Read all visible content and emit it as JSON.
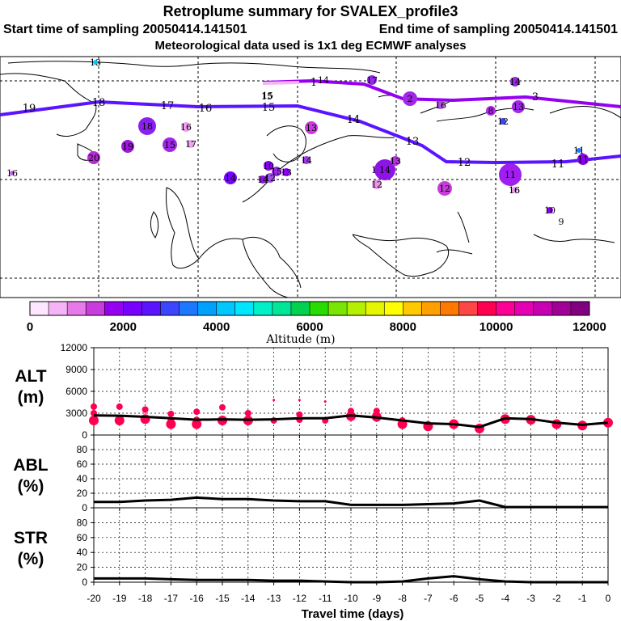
{
  "header": {
    "title": "Retroplume summary for SVALEX_profile3",
    "start": "Start time of sampling 20050414.141501",
    "end": "End time of sampling 20050414.141501",
    "met": "Meteorological data used is 1x1 deg ECMWF analyses"
  },
  "colorbar": {
    "colors": [
      "#ffe6ff",
      "#f5b4f5",
      "#e67ae6",
      "#c83cdc",
      "#9600f0",
      "#7800ff",
      "#5a14ff",
      "#3c46ff",
      "#1e78ff",
      "#00a0ff",
      "#00c8ff",
      "#00e6ff",
      "#00f0c8",
      "#00e696",
      "#00d250",
      "#28dc00",
      "#78e600",
      "#b4f000",
      "#e6f500",
      "#ffff00",
      "#ffc800",
      "#ffa000",
      "#ff7800",
      "#ff4646",
      "#ff0050",
      "#ff0096",
      "#e600b4",
      "#c800b4",
      "#a00096",
      "#800080"
    ],
    "ticks": [
      "0",
      "2000",
      "4000",
      "6000",
      "8000",
      "10000",
      "12000"
    ],
    "title": "Altitude (m)"
  },
  "map_labels": [
    {
      "t": "19"
    },
    {
      "t": "18"
    },
    {
      "t": "17"
    },
    {
      "t": "16"
    },
    {
      "t": "15"
    },
    {
      "t": "14"
    },
    {
      "t": "13"
    },
    {
      "t": "12"
    },
    {
      "t": "11"
    },
    {
      "t": "1"
    },
    {
      "t": "2"
    },
    {
      "t": "3"
    },
    {
      "t": "14"
    },
    {
      "t": "15"
    }
  ],
  "map_dots": [
    {
      "t": "13",
      "c": "#00c8ff"
    },
    {
      "t": "18",
      "c": "#8a1ff0"
    },
    {
      "t": "19",
      "c": "#9a1ad8"
    },
    {
      "t": "20",
      "c": "#b42ad8"
    },
    {
      "t": "16",
      "c": "#f0a0f0"
    },
    {
      "t": "15",
      "c": "#a028e6"
    },
    {
      "t": "17",
      "c": "#f0a0f0"
    },
    {
      "t": "16",
      "c": "#c864e6"
    },
    {
      "t": "10",
      "c": "#8c00f0"
    },
    {
      "t": "14",
      "c": "#7800ff"
    },
    {
      "t": "15",
      "c": "#9628e6"
    },
    {
      "t": "13",
      "c": "#8c00f0"
    },
    {
      "t": "12",
      "c": "#a050e6"
    },
    {
      "t": "14",
      "c": "#a03ce6"
    },
    {
      "t": "13",
      "c": "#c83cdc"
    },
    {
      "t": "15",
      "c": "#e680e6"
    },
    {
      "t": "14",
      "c": "#8c14e6"
    },
    {
      "t": "12",
      "c": "#e696e6"
    },
    {
      "t": "13",
      "c": "#b432dc"
    },
    {
      "t": "12",
      "c": "#c83cdc"
    },
    {
      "t": "11",
      "c": "#a01ef0"
    },
    {
      "t": "16",
      "c": "#f0a0f0"
    },
    {
      "t": "2",
      "c": "#a028e6"
    },
    {
      "t": "16",
      "c": "#b450e6"
    },
    {
      "t": "17",
      "c": "#9628e6"
    },
    {
      "t": "14",
      "c": "#9628e6"
    },
    {
      "t": "13",
      "c": "#a028e6"
    },
    {
      "t": "12",
      "c": "#3c46ff"
    },
    {
      "t": "8",
      "c": "#b428e6"
    },
    {
      "t": "11",
      "c": "#1e78ff"
    },
    {
      "t": "11",
      "c": "#8c00f0"
    },
    {
      "t": "10",
      "c": "#8c00f0"
    },
    {
      "t": "9",
      "c": "#ffffff"
    },
    {
      "t": "16",
      "c": "#ffffff"
    },
    {
      "t": "15",
      "c": "#ffffff"
    },
    {
      "t": "14",
      "c": "#8c14e6"
    }
  ],
  "panels": {
    "alt": {
      "label1": "ALT",
      "label2": "(m)",
      "ticks": [
        "12000",
        "9000",
        "6000",
        "3000",
        "0"
      ]
    },
    "abl": {
      "label1": "ABL",
      "label2": "(%)",
      "ticks": [
        "80",
        "60",
        "40",
        "20",
        "0"
      ]
    },
    "str": {
      "label1": "STR",
      "label2": "(%)",
      "ticks": [
        "80",
        "60",
        "40",
        "20",
        "0"
      ]
    }
  },
  "chart_data": {
    "type": "line",
    "title": "Retroplume summary for SVALEX_profile3",
    "xlabel": "Travel time (days)",
    "x": [
      -20,
      -19,
      -18,
      -17,
      -16,
      -15,
      -14,
      -13,
      -12,
      -11,
      -10,
      -9,
      -8,
      -7,
      -6,
      -5,
      -4,
      -3,
      -2,
      -1,
      0
    ],
    "xlim": [
      -20,
      0
    ],
    "xtick_labels": [
      "-20",
      "-19",
      "-18",
      "-17",
      "-16",
      "-15",
      "-14",
      "-13",
      "-12",
      "-11",
      "-10",
      "-9",
      "-8",
      "-7",
      "-6",
      "-5",
      "-4",
      "-3",
      "-2",
      "-1",
      "0"
    ],
    "series": [
      {
        "name": "ALT (m)",
        "ylim": [
          0,
          12000
        ],
        "values": [
          2700,
          2650,
          2500,
          2300,
          2100,
          2150,
          2100,
          2150,
          2300,
          2300,
          2700,
          2400,
          2000,
          1600,
          1500,
          1100,
          2300,
          2200,
          1700,
          1400,
          1700
        ]
      },
      {
        "name": "ABL (%)",
        "ylim": [
          0,
          100
        ],
        "values": [
          8,
          8,
          10,
          11,
          14,
          12,
          12,
          10,
          9,
          9,
          4,
          4,
          4,
          5,
          6,
          10,
          1,
          1,
          1,
          1,
          1
        ]
      },
      {
        "name": "STR (%)",
        "ylim": [
          0,
          100
        ],
        "values": [
          5,
          5,
          5,
          4,
          3,
          3,
          3,
          2,
          2,
          1,
          0,
          0,
          1,
          5,
          8,
          4,
          1,
          0,
          0,
          0,
          0
        ]
      }
    ],
    "alt_markers": [
      {
        "x": -20,
        "ys": [
          3900,
          3000,
          2000
        ]
      },
      {
        "x": -19,
        "ys": [
          3900,
          2000
        ]
      },
      {
        "x": -18,
        "ys": [
          3500,
          2200
        ]
      },
      {
        "x": -17,
        "ys": [
          2900,
          2000,
          1500
        ]
      },
      {
        "x": -16,
        "ys": [
          3200,
          2100,
          1500
        ]
      },
      {
        "x": -15,
        "ys": [
          3800,
          2000
        ]
      },
      {
        "x": -14,
        "ys": [
          3000,
          2000
        ]
      },
      {
        "x": -13,
        "ys": [
          2000,
          4800
        ]
      },
      {
        "x": -12,
        "ys": [
          2800,
          2100,
          4800
        ]
      },
      {
        "x": -11,
        "ys": [
          2000,
          4600
        ]
      },
      {
        "x": -10,
        "ys": [
          3300,
          2600
        ]
      },
      {
        "x": -9,
        "ys": [
          3300,
          2500
        ]
      },
      {
        "x": -8,
        "ys": [
          2000,
          1500
        ]
      },
      {
        "x": -7,
        "ys": [
          1500,
          1200
        ]
      },
      {
        "x": -6,
        "ys": [
          1500
        ]
      },
      {
        "x": -5,
        "ys": [
          1100,
          900
        ]
      },
      {
        "x": -4,
        "ys": [
          2200
        ]
      },
      {
        "x": -3,
        "ys": [
          2100
        ]
      },
      {
        "x": -2,
        "ys": [
          1500
        ]
      },
      {
        "x": -1,
        "ys": [
          1300
        ]
      },
      {
        "x": 0,
        "ys": [
          1700
        ]
      }
    ]
  }
}
